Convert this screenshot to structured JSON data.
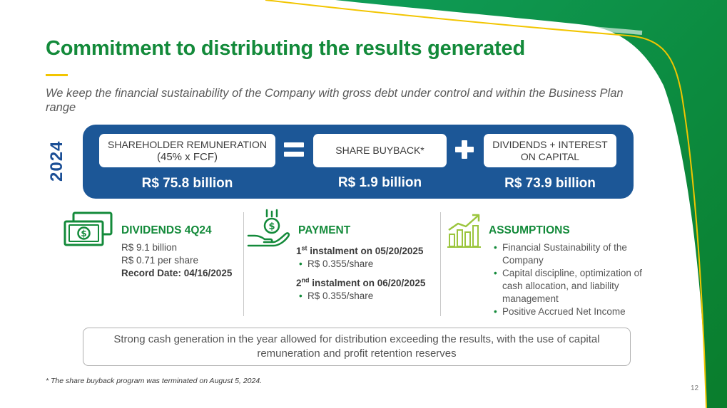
{
  "slide": {
    "title": "Commitment to distributing the results generated",
    "subtitle": "We keep the financial sustainability of the Company with gross debt under control and within the Business Plan range",
    "year": "2024",
    "page_number": "12",
    "footnote": "* The share buyback program was terminated on August 5, 2024.",
    "summary_note": "Strong cash generation in the year allowed for distribution exceeding the results, with the use of capital remuneration and profit retention reserves"
  },
  "banner": {
    "remuneration": {
      "label_line1": "SHAREHOLDER REMUNERATION",
      "label_line2": "(45% x FCF)",
      "amount": "R$ 75.8 billion"
    },
    "equals_symbol": "=",
    "buyback": {
      "label": "SHARE BUYBACK*",
      "amount": "R$ 1.9 billion"
    },
    "plus_symbol": "+",
    "dividends": {
      "label_line1": "DIVIDENDS + INTEREST",
      "label_line2": "ON CAPITAL",
      "amount": "R$ 73.9 billion"
    }
  },
  "columns": {
    "dividends": {
      "title": "DIVIDENDS 4Q24",
      "line1": "R$ 9.1 billion",
      "line2": "R$ 0.71 per share",
      "line3": "Record Date: 04/16/2025"
    },
    "payment": {
      "title": "PAYMENT",
      "inst1_num": "1",
      "inst1_sup": "st",
      "inst1_text": " instalment on 05/20/2025",
      "inst1_value": "R$ 0.355/share",
      "inst2_num": "2",
      "inst2_sup": "nd",
      "inst2_text": " instalment on 06/20/2025",
      "inst2_value": "R$ 0.355/share"
    },
    "assumptions": {
      "title": "ASSUMPTIONS",
      "items": [
        "Financial Sustainability of the Company",
        "Capital discipline, optimization of cash allocation, and liability management",
        "Positive Accrued Net Income"
      ]
    }
  },
  "icons": [
    "money-bills-icon",
    "coin-hand-icon",
    "growth-chart-icon"
  ],
  "colors": {
    "brand_green": "#138a3a",
    "brand_blue": "#1c5797",
    "accent_yellow": "#f2c500"
  }
}
